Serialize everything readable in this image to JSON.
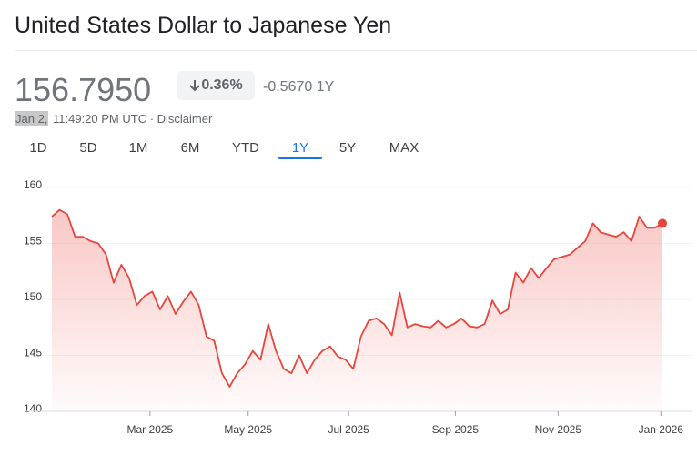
{
  "header": {
    "title": "United States Dollar to Japanese Yen",
    "price": "156.7950",
    "change_pct": "0.36%",
    "change_abs": "-0.5670 1Y",
    "date": "Jan 2,",
    "time": "11:49:20 PM UTC · Disclaimer"
  },
  "tabs": {
    "items": [
      "1D",
      "5D",
      "1M",
      "6M",
      "YTD",
      "1Y",
      "5Y",
      "MAX"
    ],
    "active": 5
  },
  "chart_data": {
    "type": "line",
    "color": "#e8453c",
    "values": [
      157.4,
      158.0,
      157.6,
      155.6,
      155.6,
      155.2,
      155.0,
      154.0,
      151.5,
      153.1,
      151.9,
      149.5,
      150.3,
      150.7,
      149.1,
      150.3,
      148.7,
      149.8,
      150.7,
      149.5,
      146.7,
      146.3,
      143.4,
      142.2,
      143.4,
      144.2,
      145.4,
      144.6,
      147.8,
      145.4,
      143.8,
      143.4,
      145.0,
      143.4,
      144.6,
      145.4,
      145.8,
      144.9,
      144.6,
      143.8,
      146.7,
      148.1,
      148.3,
      147.8,
      146.8,
      150.6,
      147.5,
      147.8,
      147.6,
      147.5,
      148.1,
      147.5,
      147.8,
      148.3,
      147.6,
      147.5,
      147.8,
      149.9,
      148.7,
      149.1,
      152.4,
      151.5,
      152.8,
      151.9,
      152.8,
      153.6,
      153.8,
      154.0,
      154.6,
      155.2,
      156.8,
      156.0,
      155.8,
      155.6,
      156.0,
      155.2,
      157.4,
      156.4,
      156.4,
      156.8
    ],
    "xlim": [
      0,
      79
    ],
    "xticks": [
      {
        "value": 12.7,
        "label": "Mar 2025"
      },
      {
        "value": 25.4,
        "label": "May 2025"
      },
      {
        "value": 38.4,
        "label": "Jul 2025"
      },
      {
        "value": 52.2,
        "label": "Sep 2025"
      },
      {
        "value": 65.5,
        "label": "Nov 2025"
      },
      {
        "value": 78.8,
        "label": "Jan 2026"
      }
    ],
    "ylim": [
      140,
      160
    ],
    "yticks": [
      140,
      145,
      150,
      155,
      160
    ],
    "grid": true
  }
}
